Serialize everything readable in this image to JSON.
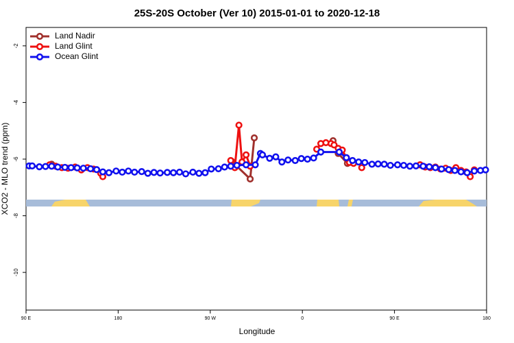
{
  "chart_data": {
    "type": "line",
    "title": "25S-20S October (Ver 10)   2015-01-01 to 2020-12-18",
    "xlabel": "Longitude",
    "ylabel": "XCO2 - MLO trend (ppm)",
    "xlim": [
      90,
      540
    ],
    "xticks": [
      {
        "value": 90,
        "label": "90 E"
      },
      180,
      {
        "value": 270,
        "label": "90 W"
      },
      {
        "value": 360,
        "label": "0"
      },
      {
        "value": 450,
        "label": "90 E"
      },
      {
        "value": 540,
        "label": "180"
      }
    ],
    "ylim": [
      -11.33,
      -1.35
    ],
    "yticks": [
      -10,
      -8,
      -6,
      -4,
      -2
    ],
    "legend": "upper left",
    "series": [
      {
        "name": "Land Nadir",
        "color": "#a0302c",
        "x": [
          115,
          null,
          291,
          309,
          313,
          null,
          390,
          395,
          404,
          null,
          475
        ],
        "values": [
          -6.18,
          null,
          -6.08,
          -6.7,
          -5.25,
          null,
          -5.35,
          -5.8,
          -6.15,
          null,
          -6.2
        ]
      },
      {
        "name": "Land Glint",
        "color": "#ee1111",
        "x": [
          113,
          119,
          125,
          131,
          138,
          144,
          150,
          156,
          163,
          165,
          null,
          290,
          294,
          298,
          301,
          305,
          309,
          null,
          374,
          378,
          383,
          388,
          391,
          395,
          399,
          403,
          406,
          410,
          null,
          418,
          null,
          475,
          480,
          485,
          490,
          495,
          500,
          505,
          510,
          515,
          520,
          524,
          528
        ],
        "values": [
          -6.2,
          -6.25,
          -6.3,
          -6.32,
          -6.28,
          -6.38,
          -6.3,
          -6.35,
          -6.5,
          -6.62,
          null,
          -6.05,
          -6.3,
          -4.8,
          -6.1,
          -5.85,
          -6.25,
          null,
          -5.65,
          -5.45,
          -5.42,
          -5.45,
          -5.5,
          -5.62,
          -5.68,
          -5.95,
          -6.12,
          -6.15,
          null,
          -6.3,
          null,
          -6.2,
          -6.28,
          -6.3,
          -6.28,
          -6.35,
          -6.32,
          -6.4,
          -6.3,
          -6.4,
          -6.45,
          -6.62,
          -6.38
        ]
      },
      {
        "name": "Ocean Glint",
        "color": "#1111ee",
        "x": [
          93,
          96,
          103,
          109,
          115,
          121,
          128,
          134,
          140,
          146,
          153,
          159,
          165,
          171,
          178,
          184,
          190,
          196,
          203,
          209,
          215,
          221,
          228,
          234,
          240,
          246,
          253,
          259,
          265,
          271,
          278,
          284,
          290,
          296,
          305,
          314,
          319,
          321,
          328,
          334,
          340,
          346,
          353,
          359,
          365,
          371,
          378,
          396,
          403,
          409,
          415,
          421,
          428,
          434,
          440,
          446,
          453,
          459,
          465,
          471,
          478,
          484,
          490,
          496,
          503,
          509,
          515,
          521,
          528,
          534,
          539
        ],
        "values": [
          -6.24,
          -6.24,
          -6.27,
          -6.26,
          -6.25,
          -6.28,
          -6.29,
          -6.3,
          -6.31,
          -6.32,
          -6.34,
          -6.37,
          -6.45,
          -6.48,
          -6.42,
          -6.46,
          -6.42,
          -6.46,
          -6.44,
          -6.5,
          -6.47,
          -6.49,
          -6.47,
          -6.48,
          -6.46,
          -6.52,
          -6.46,
          -6.5,
          -6.48,
          -6.35,
          -6.34,
          -6.28,
          -6.25,
          -6.22,
          -6.2,
          -6.2,
          -5.8,
          -5.85,
          -5.97,
          -5.92,
          -6.1,
          -6.03,
          -6.05,
          -5.98,
          -6.0,
          -5.96,
          -5.75,
          -5.75,
          -5.95,
          -6.05,
          -6.1,
          -6.12,
          -6.18,
          -6.17,
          -6.18,
          -6.22,
          -6.2,
          -6.22,
          -6.25,
          -6.24,
          -6.25,
          -6.27,
          -6.3,
          -6.35,
          -6.37,
          -6.4,
          -6.45,
          -6.48,
          -6.42,
          -6.4,
          -6.38
        ]
      }
    ]
  }
}
